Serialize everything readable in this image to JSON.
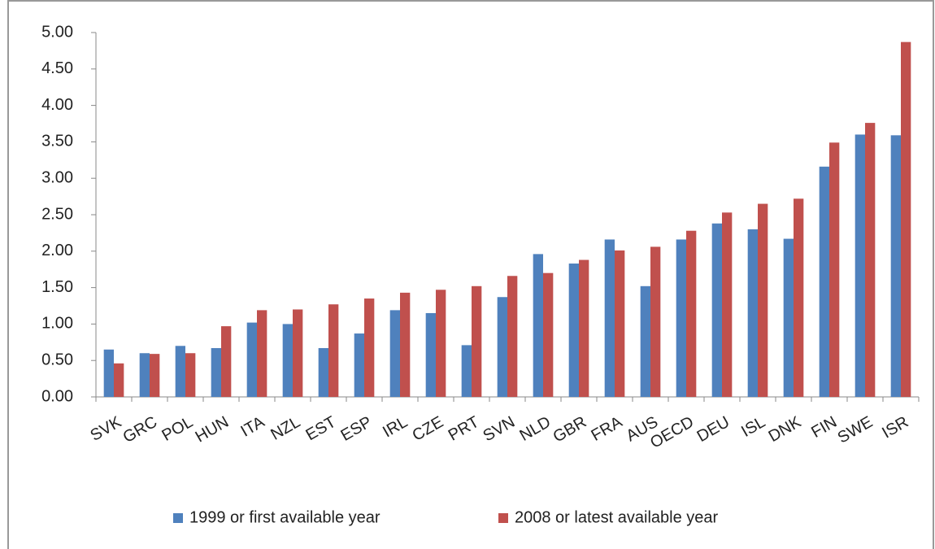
{
  "chart_data": {
    "type": "bar",
    "categories": [
      "SVK",
      "GRC",
      "POL",
      "HUN",
      "ITA",
      "NZL",
      "EST",
      "ESP",
      "IRL",
      "CZE",
      "PRT",
      "SVN",
      "NLD",
      "GBR",
      "FRA",
      "AUS",
      "OECD",
      "DEU",
      "ISL",
      "DNK",
      "FIN",
      "SWE",
      "ISR"
    ],
    "series": [
      {
        "name": "1999 or first available year",
        "color": "#4f81bd",
        "values": [
          0.65,
          0.6,
          0.7,
          0.67,
          1.02,
          1.0,
          0.67,
          0.87,
          1.19,
          1.15,
          0.71,
          1.37,
          1.96,
          1.83,
          2.16,
          1.52,
          2.16,
          2.38,
          2.3,
          2.17,
          3.16,
          3.6,
          3.59
        ]
      },
      {
        "name": "2008 or latest available year",
        "color": "#c0504d",
        "values": [
          0.46,
          0.59,
          0.6,
          0.97,
          1.19,
          1.2,
          1.27,
          1.35,
          1.43,
          1.47,
          1.52,
          1.66,
          1.7,
          1.88,
          2.01,
          2.06,
          2.28,
          2.53,
          2.65,
          2.72,
          3.49,
          3.76,
          4.87
        ]
      }
    ],
    "ylim": [
      0,
      5
    ],
    "yticks": [
      {
        "value": 0,
        "label": "0.00"
      },
      {
        "value": 0.5,
        "label": "0.50"
      },
      {
        "value": 1,
        "label": "1.00"
      },
      {
        "value": 1.5,
        "label": "1.50"
      },
      {
        "value": 2,
        "label": "2.00"
      },
      {
        "value": 2.5,
        "label": "2.50"
      },
      {
        "value": 3,
        "label": "3.00"
      },
      {
        "value": 3.5,
        "label": "3.50"
      },
      {
        "value": 4,
        "label": "4.00"
      },
      {
        "value": 4.5,
        "label": "4.50"
      },
      {
        "value": 5,
        "label": "5.00"
      }
    ],
    "legend": "bottom"
  }
}
